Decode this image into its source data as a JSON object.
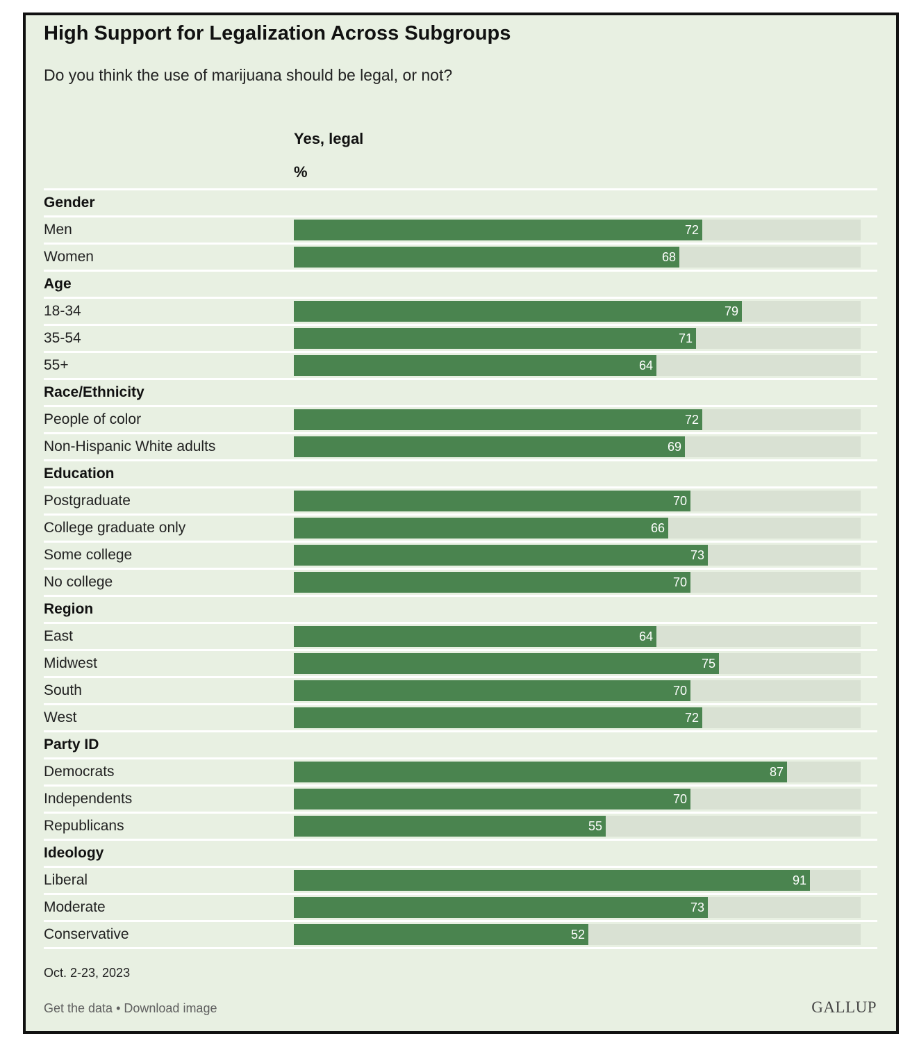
{
  "header": {
    "title": "High Support for Legalization Across Subgroups",
    "subtitle": "Do you think the use of marijuana should be legal, or not?",
    "column_header": "Yes, legal",
    "column_unit": "%"
  },
  "footer": {
    "date": "Oct. 2-23, 2023",
    "get_data": "Get the data",
    "separator": " • ",
    "download": "Download image",
    "brand": "GALLUP"
  },
  "colors": {
    "bar": "#4a844f",
    "track": "#d9e1d3",
    "background": "#e8f0e2"
  },
  "chart_data": {
    "type": "bar",
    "orientation": "horizontal",
    "title": "High Support for Legalization Across Subgroups",
    "subtitle": "Do you think the use of marijuana should be legal, or not?",
    "value_label": "Yes, legal",
    "unit": "%",
    "xlim": [
      0,
      100
    ],
    "grid": false,
    "groups": [
      {
        "name": "Gender",
        "items": [
          {
            "label": "Men",
            "value": 72
          },
          {
            "label": "Women",
            "value": 68
          }
        ]
      },
      {
        "name": "Age",
        "items": [
          {
            "label": "18-34",
            "value": 79
          },
          {
            "label": "35-54",
            "value": 71
          },
          {
            "label": "55+",
            "value": 64
          }
        ]
      },
      {
        "name": "Race/Ethnicity",
        "items": [
          {
            "label": "People of color",
            "value": 72
          },
          {
            "label": "Non-Hispanic White adults",
            "value": 69
          }
        ]
      },
      {
        "name": "Education",
        "items": [
          {
            "label": "Postgraduate",
            "value": 70
          },
          {
            "label": "College graduate only",
            "value": 66
          },
          {
            "label": "Some college",
            "value": 73
          },
          {
            "label": "No college",
            "value": 70
          }
        ]
      },
      {
        "name": "Region",
        "items": [
          {
            "label": "East",
            "value": 64
          },
          {
            "label": "Midwest",
            "value": 75
          },
          {
            "label": "South",
            "value": 70
          },
          {
            "label": "West",
            "value": 72
          }
        ]
      },
      {
        "name": "Party ID",
        "items": [
          {
            "label": "Democrats",
            "value": 87
          },
          {
            "label": "Independents",
            "value": 70
          },
          {
            "label": "Republicans",
            "value": 55
          }
        ]
      },
      {
        "name": "Ideology",
        "items": [
          {
            "label": "Liberal",
            "value": 91
          },
          {
            "label": "Moderate",
            "value": 73
          },
          {
            "label": "Conservative",
            "value": 52
          }
        ]
      }
    ]
  }
}
